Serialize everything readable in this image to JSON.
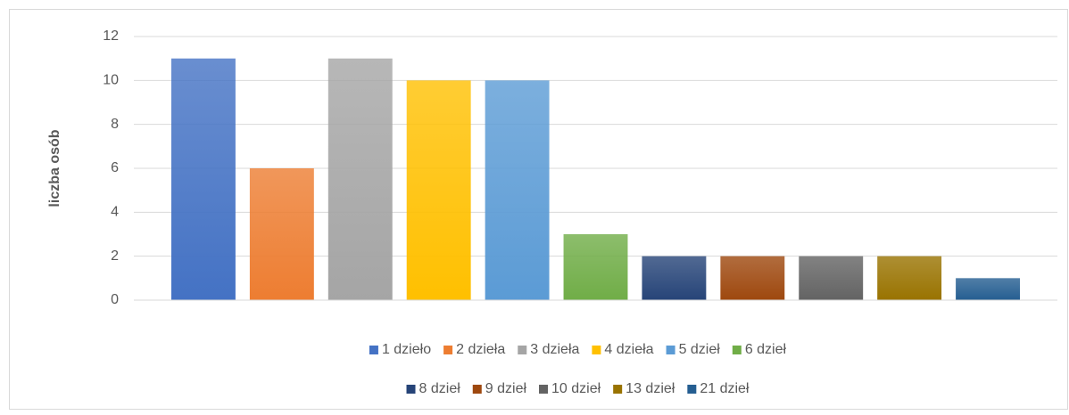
{
  "chart_data": {
    "type": "bar",
    "ylabel": "liczba osób",
    "categories": [
      null
    ],
    "ylim": [
      0,
      12
    ],
    "yticks": [
      0,
      2,
      4,
      6,
      8,
      10,
      12
    ],
    "grid": true,
    "series": [
      {
        "name": "1 dzieło",
        "color": "#4472c4",
        "values": [
          11
        ]
      },
      {
        "name": "2 dzieła",
        "color": "#ed7d31",
        "values": [
          6
        ]
      },
      {
        "name": "3 dzieła",
        "color": "#a5a5a5",
        "values": [
          11
        ]
      },
      {
        "name": "4 dzieła",
        "color": "#ffc000",
        "values": [
          10
        ]
      },
      {
        "name": "5 dzieł",
        "color": "#5b9bd5",
        "values": [
          10
        ]
      },
      {
        "name": "6 dzieł",
        "color": "#70ad47",
        "values": [
          3
        ]
      },
      {
        "name": "8 dzieł",
        "color": "#264478",
        "values": [
          2
        ]
      },
      {
        "name": "9 dzieł",
        "color": "#9e480e",
        "values": [
          2
        ]
      },
      {
        "name": "10 dzieł",
        "color": "#636363",
        "values": [
          2
        ]
      },
      {
        "name": "13 dzieł",
        "color": "#997300",
        "values": [
          2
        ]
      },
      {
        "name": "21 dzieł",
        "color": "#255e91",
        "values": [
          1
        ]
      }
    ]
  }
}
